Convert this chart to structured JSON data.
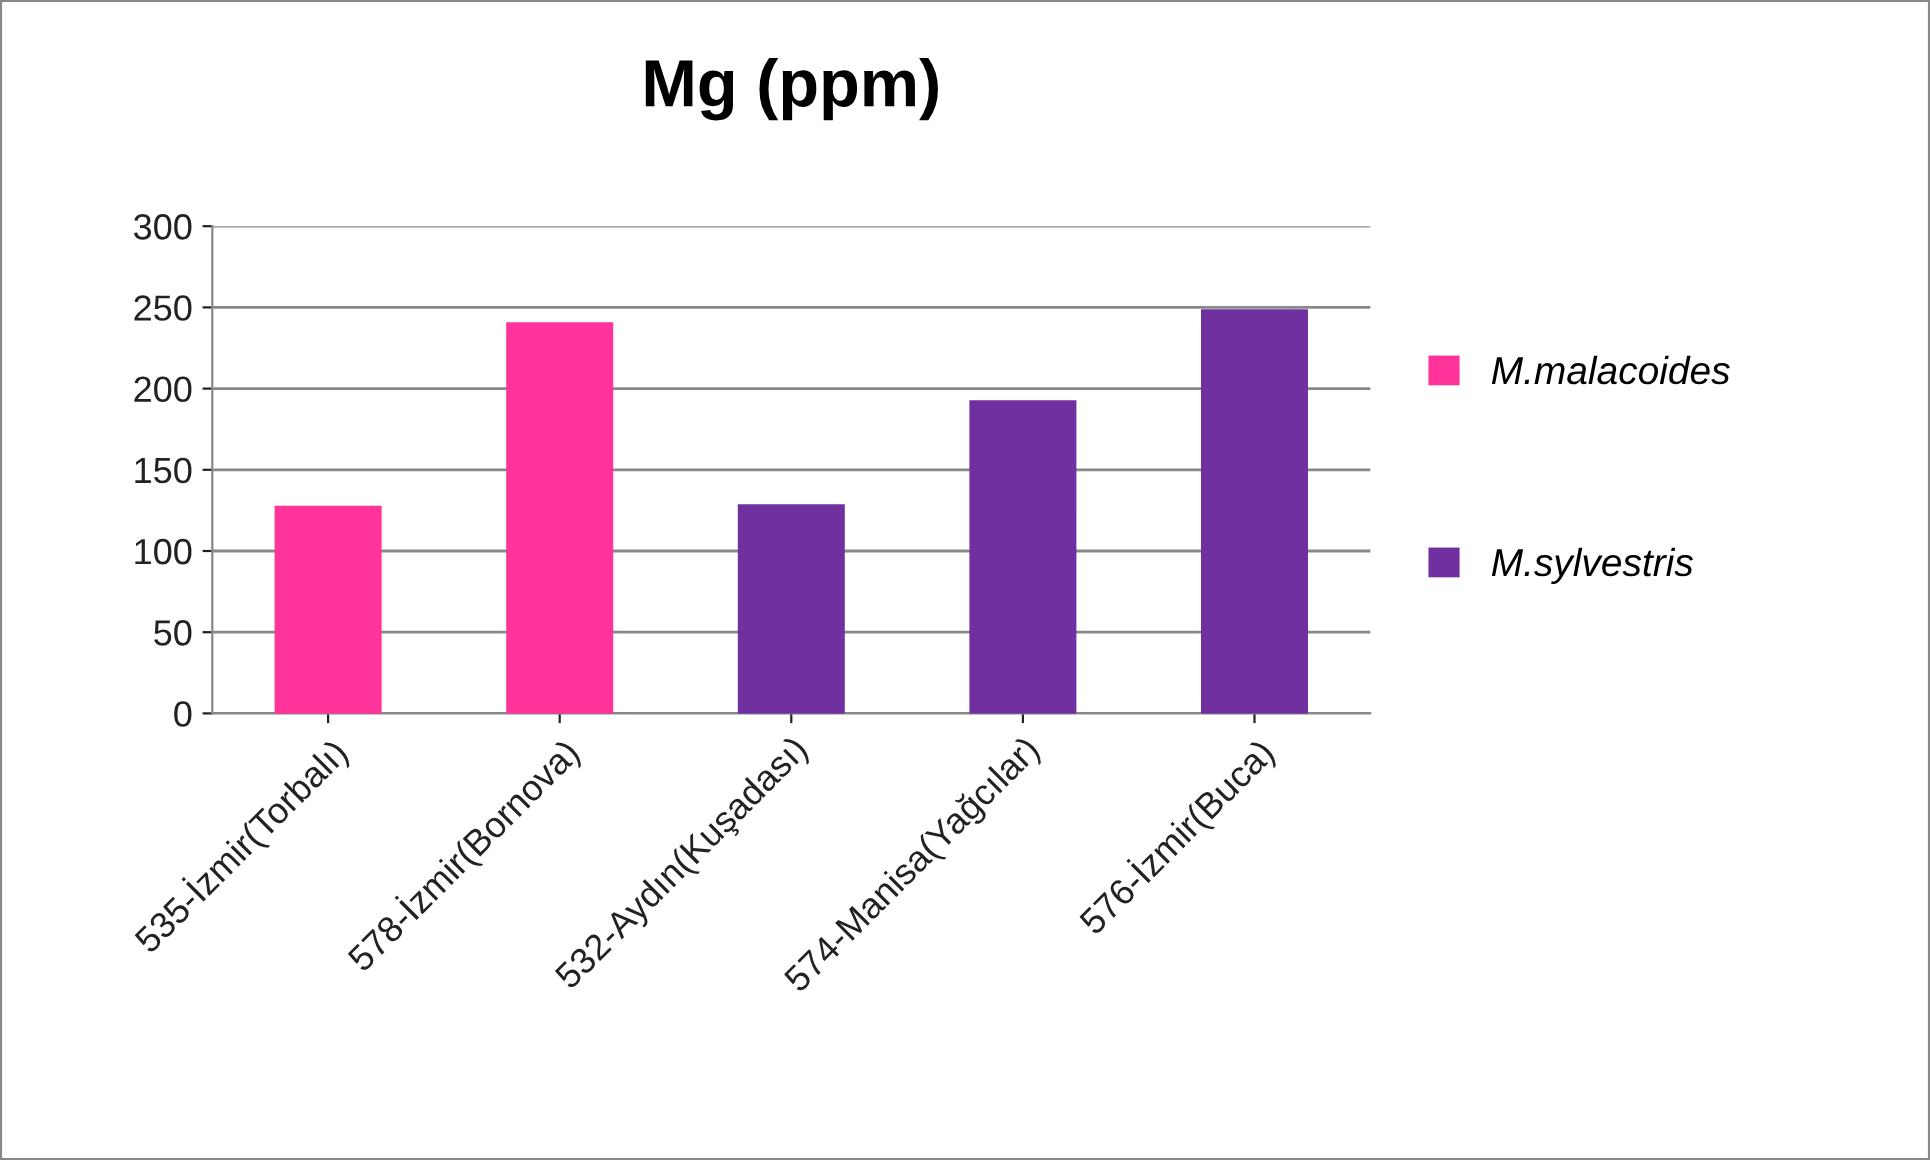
{
  "chart_data": {
    "type": "bar",
    "title": "Mg (ppm)",
    "categories": [
      "535-İzmir(Torbalı)",
      "578-İzmir(Bornova)",
      "532-Aydın(Kuşadası)",
      "574-Manisa(Yağcılar)",
      "576-İzmir(Buca)"
    ],
    "series": [
      {
        "name": "M.malacoides",
        "color": "#ff3399",
        "values": [
          127,
          240,
          null,
          null,
          null
        ]
      },
      {
        "name": "M.sylvestris",
        "color": "#7030a0",
        "values": [
          null,
          null,
          128,
          192,
          248
        ]
      }
    ],
    "ylim": [
      0,
      300
    ],
    "yticks": [
      0,
      50,
      100,
      150,
      200,
      250,
      300
    ],
    "grid": "y",
    "legend": "right"
  }
}
